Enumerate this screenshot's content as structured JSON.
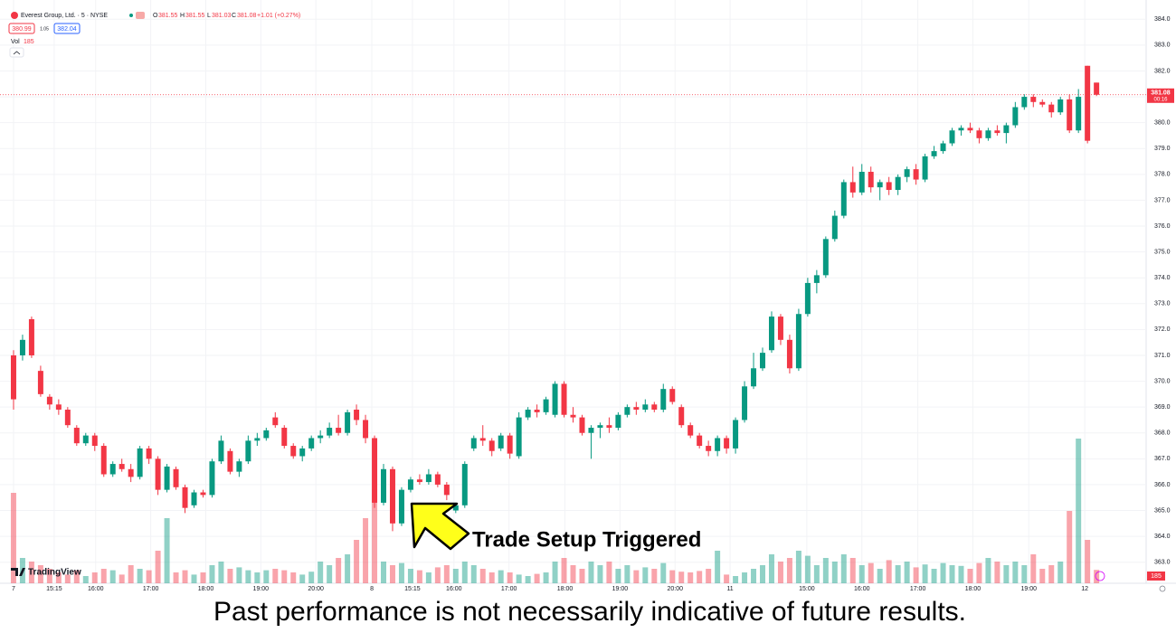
{
  "chart_data": {
    "type": "candlestick",
    "title": "Everest Group, Ltd. · 5 · NYSE",
    "change": "+1.01 (+0.27%)",
    "sell": "380.99",
    "spread": "1.05",
    "buy": "382.04",
    "volume_label": "Vol",
    "countdown": "00:16",
    "brand": "TradingView",
    "annotation": "Trade Setup Triggered",
    "caption": "Past performance is not necessarily indicative of future results.",
    "up_color": "#089981",
    "down_color": "#f23645",
    "ylim": [
      362.5,
      384.5
    ],
    "yticks": [
      {
        "value": 363,
        "label": "363.0"
      },
      {
        "value": 364,
        "label": "364.0"
      },
      {
        "value": 365,
        "label": "365.0"
      },
      {
        "value": 366,
        "label": "366.0"
      },
      {
        "value": 367,
        "label": "367.0"
      },
      {
        "value": 368,
        "label": "368.0"
      },
      {
        "value": 369,
        "label": "369.0"
      },
      {
        "value": 370,
        "label": "370.0"
      },
      {
        "value": 371,
        "label": "371.0"
      },
      {
        "value": 372,
        "label": "372.0"
      },
      {
        "value": 373,
        "label": "373.0"
      },
      {
        "value": 374,
        "label": "374.0"
      },
      {
        "value": 375,
        "label": "375.0"
      },
      {
        "value": 376,
        "label": "376.0"
      },
      {
        "value": 377,
        "label": "377.0"
      },
      {
        "value": 378,
        "label": "378.0"
      },
      {
        "value": 379,
        "label": "379.0"
      },
      {
        "value": 380,
        "label": "380.0"
      },
      {
        "value": 381,
        "label": "381.0"
      },
      {
        "value": 382,
        "label": "382.0"
      },
      {
        "value": 383,
        "label": "383.0"
      },
      {
        "value": 384,
        "label": "384.0"
      }
    ],
    "xlim": [
      -1,
      125.5
    ],
    "xticks": [
      {
        "value": 0,
        "label": "7"
      },
      {
        "value": 4.5,
        "label": "15:15"
      },
      {
        "value": 9.1,
        "label": "16:00"
      },
      {
        "value": 15.2,
        "label": "17:00"
      },
      {
        "value": 21.3,
        "label": "18:00"
      },
      {
        "value": 27.4,
        "label": "19:00"
      },
      {
        "value": 33.5,
        "label": "20:00"
      },
      {
        "value": 39.7,
        "label": "8"
      },
      {
        "value": 44.2,
        "label": "15:15"
      },
      {
        "value": 48.8,
        "label": "16:00"
      },
      {
        "value": 54.9,
        "label": "17:00"
      },
      {
        "value": 61.1,
        "label": "18:00"
      },
      {
        "value": 67.2,
        "label": "19:00"
      },
      {
        "value": 73.3,
        "label": "20:00"
      },
      {
        "value": 79.4,
        "label": "11"
      },
      {
        "value": 87.9,
        "label": "15:00"
      },
      {
        "value": 94,
        "label": "16:00"
      },
      {
        "value": 100.2,
        "label": "17:00"
      },
      {
        "value": 106.3,
        "label": "18:00"
      },
      {
        "value": 112.5,
        "label": "19:00"
      },
      {
        "value": 118.7,
        "label": "12"
      }
    ],
    "open": [
      371.0,
      371.0,
      372.4,
      370.4,
      369.4,
      369.1,
      368.9,
      368.2,
      367.6,
      367.9,
      367.5,
      366.4,
      366.8,
      366.6,
      366.3,
      367.4,
      367.0,
      365.8,
      366.6,
      365.9,
      365.2,
      365.7,
      365.6,
      366.9,
      367.3,
      366.5,
      366.9,
      367.7,
      367.8,
      368.6,
      368.2,
      367.5,
      367.1,
      367.4,
      367.8,
      367.9,
      368.2,
      368.0,
      368.9,
      368.5,
      367.8,
      365.3,
      366.6,
      364.5,
      365.8,
      366.2,
      366.1,
      366.4,
      366.0,
      365.0,
      365.2,
      367.4,
      367.8,
      367.7,
      367.4,
      367.9,
      367.1,
      368.6,
      368.9,
      368.8,
      368.7,
      369.9,
      368.7,
      368.6,
      368.0,
      368.2,
      368.3,
      368.2,
      368.7,
      369.0,
      368.9,
      369.1,
      368.9,
      369.7,
      369.0,
      368.3,
      367.9,
      367.5,
      367.3,
      367.8,
      367.4,
      368.5,
      369.8,
      370.5,
      371.2,
      372.5,
      371.6,
      370.5,
      372.6,
      373.8,
      374.1,
      375.5,
      376.4,
      377.7,
      377.3,
      378.1,
      377.5,
      377.7,
      377.4,
      377.9,
      378.2,
      377.8,
      378.7,
      378.9,
      379.2,
      379.7,
      379.8,
      379.7,
      379.4,
      379.7,
      379.6,
      379.9,
      380.6,
      381.0,
      380.8,
      380.7,
      380.4,
      380.9,
      379.7,
      382.2,
      381.55
    ],
    "high": [
      371.2,
      371.8,
      372.5,
      370.6,
      369.5,
      369.3,
      369.0,
      368.3,
      368.0,
      368.0,
      367.6,
      366.9,
      367.0,
      366.8,
      367.5,
      367.5,
      367.1,
      366.8,
      366.7,
      366.0,
      365.8,
      365.8,
      367.0,
      367.9,
      367.4,
      367.0,
      367.9,
      368.0,
      368.2,
      368.8,
      368.3,
      367.6,
      367.5,
      367.9,
      368.1,
      368.4,
      368.7,
      368.9,
      369.1,
      368.7,
      367.9,
      366.8,
      366.7,
      365.9,
      366.3,
      366.4,
      366.6,
      366.5,
      366.1,
      365.3,
      366.9,
      367.9,
      368.3,
      367.8,
      368.0,
      368.0,
      368.8,
      369.0,
      369.1,
      369.4,
      370.0,
      370.0,
      369.0,
      368.7,
      368.3,
      368.4,
      368.6,
      368.8,
      369.1,
      369.2,
      369.3,
      369.2,
      369.9,
      369.8,
      369.1,
      368.4,
      368.0,
      367.7,
      367.9,
      367.9,
      368.6,
      370.0,
      371.1,
      371.3,
      372.7,
      372.6,
      371.8,
      372.8,
      374.0,
      374.3,
      375.6,
      376.6,
      377.8,
      378.3,
      378.4,
      378.3,
      377.8,
      377.9,
      378.0,
      378.3,
      378.4,
      378.8,
      379.1,
      379.3,
      379.8,
      379.9,
      380.0,
      379.8,
      379.8,
      379.9,
      380.0,
      380.8,
      381.1,
      381.1,
      380.9,
      380.8,
      381.0,
      381.1,
      381.3,
      382.2,
      381.55
    ],
    "low": [
      368.9,
      370.8,
      370.9,
      369.4,
      368.9,
      368.7,
      368.2,
      367.5,
      367.5,
      367.3,
      366.3,
      366.3,
      366.5,
      366.1,
      366.2,
      366.8,
      365.6,
      365.7,
      365.8,
      364.9,
      365.1,
      365.5,
      365.5,
      366.8,
      366.4,
      366.3,
      366.8,
      367.5,
      367.7,
      368.2,
      367.4,
      367.0,
      366.9,
      367.3,
      367.6,
      367.8,
      367.9,
      367.9,
      368.3,
      367.6,
      365.1,
      365.2,
      364.2,
      364.4,
      365.7,
      366.0,
      366.0,
      365.9,
      365.4,
      364.9,
      365.1,
      367.3,
      367.5,
      367.1,
      367.3,
      367.0,
      367.0,
      368.5,
      368.6,
      368.7,
      368.6,
      368.6,
      368.4,
      367.9,
      367.0,
      367.8,
      368.0,
      368.1,
      368.6,
      368.7,
      368.8,
      368.8,
      368.8,
      369.1,
      368.2,
      367.8,
      367.4,
      367.1,
      367.1,
      367.2,
      367.2,
      368.4,
      369.7,
      370.4,
      371.1,
      371.4,
      370.3,
      370.4,
      372.5,
      373.4,
      374.0,
      375.4,
      376.3,
      377.1,
      377.2,
      377.3,
      377.0,
      377.2,
      377.2,
      377.7,
      377.6,
      377.7,
      378.6,
      378.8,
      379.1,
      379.5,
      379.6,
      379.2,
      379.3,
      379.5,
      379.2,
      379.8,
      380.5,
      380.6,
      380.6,
      380.2,
      380.3,
      379.6,
      379.6,
      379.2,
      381.03
    ],
    "close": [
      369.3,
      371.6,
      371.0,
      369.5,
      369.1,
      368.9,
      368.3,
      367.6,
      367.9,
      367.5,
      366.4,
      366.8,
      366.6,
      366.3,
      367.4,
      367.0,
      365.8,
      366.7,
      365.9,
      365.1,
      365.7,
      365.6,
      366.9,
      367.7,
      366.5,
      366.9,
      367.7,
      367.8,
      368.1,
      368.3,
      367.5,
      367.1,
      367.4,
      367.8,
      367.9,
      368.2,
      368.0,
      368.8,
      368.5,
      367.8,
      365.3,
      366.6,
      364.5,
      365.8,
      366.2,
      366.1,
      366.4,
      366.0,
      365.6,
      365.2,
      366.8,
      367.8,
      367.7,
      367.3,
      367.9,
      367.2,
      368.6,
      368.9,
      368.8,
      369.3,
      369.9,
      368.7,
      368.6,
      368.0,
      368.2,
      368.3,
      368.2,
      368.7,
      369.0,
      368.9,
      369.1,
      368.9,
      369.7,
      369.2,
      368.3,
      367.9,
      367.5,
      367.3,
      367.8,
      367.4,
      368.5,
      369.8,
      370.5,
      371.1,
      372.5,
      371.6,
      370.5,
      372.6,
      373.8,
      374.1,
      375.5,
      376.4,
      377.7,
      377.3,
      378.1,
      377.5,
      377.7,
      377.4,
      377.9,
      378.2,
      377.8,
      378.7,
      378.9,
      379.2,
      379.7,
      379.8,
      379.7,
      379.4,
      379.7,
      379.6,
      379.9,
      380.6,
      381.0,
      380.8,
      380.7,
      380.4,
      380.9,
      379.7,
      381.0,
      379.3,
      381.08
    ],
    "volume": [
      1250,
      350,
      300,
      250,
      200,
      150,
      120,
      180,
      100,
      150,
      200,
      180,
      120,
      250,
      200,
      180,
      450,
      900,
      150,
      180,
      120,
      150,
      250,
      300,
      200,
      220,
      180,
      150,
      180,
      200,
      180,
      150,
      120,
      160,
      300,
      250,
      350,
      400,
      600,
      900,
      1300,
      300,
      250,
      280,
      200,
      180,
      150,
      220,
      250,
      200,
      300,
      250,
      200,
      150,
      180,
      150,
      120,
      100,
      130,
      150,
      300,
      350,
      250,
      200,
      300,
      250,
      300,
      200,
      250,
      180,
      220,
      200,
      280,
      180,
      160,
      150,
      170,
      200,
      450,
      120,
      100,
      150,
      200,
      250,
      400,
      300,
      350,
      450,
      380,
      250,
      350,
      300,
      400,
      350,
      250,
      280,
      200,
      320,
      250,
      300,
      220,
      260,
      200,
      280,
      250,
      240,
      200,
      280,
      350,
      300,
      250,
      300,
      250,
      400,
      200,
      250,
      300,
      1000,
      2000,
      600,
      185
    ]
  }
}
